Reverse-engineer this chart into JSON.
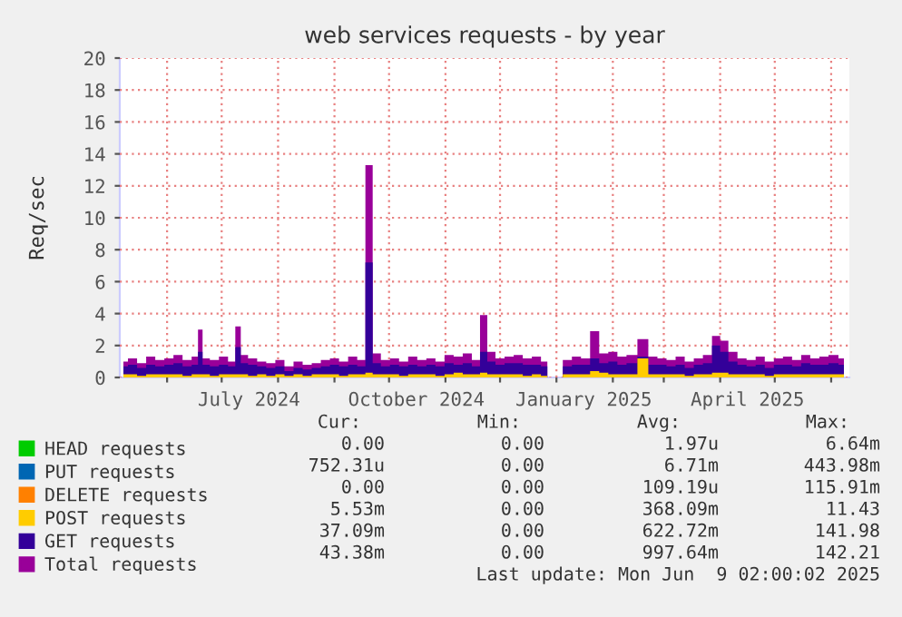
{
  "chart_data": {
    "type": "area",
    "title": "web services requests - by year",
    "ylabel": "Req/sec",
    "x": [
      "2024-05-08",
      "2024-05-13",
      "2024-05-18",
      "2024-05-23",
      "2024-05-28",
      "2024-06-02",
      "2024-06-07",
      "2024-06-12",
      "2024-06-17",
      "2024-06-19",
      "2024-06-22",
      "2024-06-27",
      "2024-07-02",
      "2024-07-07",
      "2024-07-10",
      "2024-07-13",
      "2024-07-18",
      "2024-07-23",
      "2024-07-28",
      "2024-08-02",
      "2024-08-07",
      "2024-08-12",
      "2024-08-17",
      "2024-08-22",
      "2024-08-27",
      "2024-09-01",
      "2024-09-06",
      "2024-09-11",
      "2024-09-16",
      "2024-09-20",
      "2024-09-24",
      "2024-09-29",
      "2024-10-04",
      "2024-10-09",
      "2024-10-14",
      "2024-10-19",
      "2024-10-24",
      "2024-10-29",
      "2024-11-03",
      "2024-11-08",
      "2024-11-13",
      "2024-11-18",
      "2024-11-22",
      "2024-11-26",
      "2024-12-01",
      "2024-12-06",
      "2024-12-11",
      "2024-12-16",
      "2024-12-21",
      "2024-12-26",
      "2024-12-28",
      "2025-01-02",
      "2025-01-07",
      "2025-01-12",
      "2025-01-17",
      "2025-01-22",
      "2025-01-27",
      "2025-02-01",
      "2025-02-06",
      "2025-02-11",
      "2025-02-18",
      "2025-02-23",
      "2025-02-28",
      "2025-03-05",
      "2025-03-10",
      "2025-03-15",
      "2025-03-20",
      "2025-03-25",
      "2025-03-30",
      "2025-04-03",
      "2025-04-08",
      "2025-04-13",
      "2025-04-18",
      "2025-04-23",
      "2025-04-28",
      "2025-05-03",
      "2025-05-08",
      "2025-05-13",
      "2025-05-18",
      "2025-05-23",
      "2025-05-28",
      "2025-06-02",
      "2025-06-08"
    ],
    "series": [
      {
        "name": "HEAD requests",
        "color": "#00cc00",
        "values": [
          null,
          null,
          null,
          null,
          null,
          null,
          null,
          null,
          null,
          null,
          null,
          null,
          null,
          null,
          null,
          null,
          null,
          null,
          null,
          null,
          null,
          null,
          null,
          null,
          null,
          null,
          null,
          null,
          null,
          null,
          null,
          null,
          null,
          null,
          null,
          null,
          null,
          null,
          null,
          null,
          null,
          null,
          null,
          null,
          null,
          null,
          null,
          null,
          null,
          null,
          null,
          null,
          null,
          null,
          null,
          null,
          null,
          null,
          null,
          null,
          null,
          null,
          null,
          null,
          null,
          null,
          null,
          null,
          null,
          null,
          null,
          null,
          null,
          null,
          null,
          null,
          null,
          null,
          null,
          null,
          null,
          null,
          null
        ]
      },
      {
        "name": "PUT requests",
        "color": "#0066b3",
        "values": [
          null,
          null,
          null,
          null,
          null,
          null,
          null,
          null,
          null,
          null,
          null,
          null,
          null,
          null,
          null,
          null,
          null,
          null,
          null,
          null,
          null,
          null,
          null,
          null,
          null,
          null,
          null,
          null,
          null,
          null,
          null,
          null,
          null,
          null,
          null,
          null,
          null,
          null,
          null,
          null,
          null,
          null,
          null,
          null,
          null,
          null,
          null,
          null,
          null,
          null,
          null,
          null,
          null,
          null,
          null,
          null,
          null,
          null,
          null,
          null,
          null,
          null,
          null,
          null,
          null,
          null,
          null,
          null,
          null,
          null,
          null,
          null,
          null,
          null,
          null,
          null,
          null,
          null,
          null,
          null,
          null,
          null,
          null
        ]
      },
      {
        "name": "DELETE requests",
        "color": "#ff8000",
        "values": [
          null,
          null,
          null,
          null,
          null,
          null,
          null,
          null,
          null,
          null,
          null,
          null,
          null,
          null,
          null,
          null,
          null,
          null,
          null,
          null,
          null,
          null,
          null,
          null,
          null,
          null,
          null,
          null,
          null,
          null,
          null,
          null,
          null,
          null,
          null,
          null,
          null,
          null,
          null,
          null,
          null,
          null,
          null,
          null,
          null,
          null,
          null,
          null,
          null,
          null,
          null,
          null,
          null,
          null,
          null,
          null,
          null,
          null,
          null,
          null,
          null,
          null,
          null,
          null,
          null,
          null,
          null,
          null,
          null,
          null,
          null,
          null,
          null,
          null,
          null,
          null,
          null,
          null,
          null,
          null,
          null,
          null,
          null
        ]
      },
      {
        "name": "POST requests",
        "color": "#ffcc00",
        "values": [
          0.2,
          0.2,
          0.1,
          0.2,
          0.2,
          0.2,
          0.2,
          0.1,
          0.2,
          0.2,
          0.2,
          0.1,
          0.2,
          0.2,
          0.2,
          0.2,
          0.1,
          0.2,
          0.1,
          0.2,
          0.1,
          0.2,
          0.1,
          0.2,
          0.2,
          0.2,
          0.1,
          0.2,
          0.2,
          0.3,
          0.2,
          0.2,
          0.2,
          0.1,
          0.2,
          0.2,
          0.2,
          0.1,
          0.2,
          0.3,
          0.2,
          0.2,
          0.3,
          0.2,
          0.2,
          0.2,
          0.2,
          0.1,
          0.2,
          0.1,
          0.0,
          0.0,
          0.2,
          0.2,
          0.2,
          0.4,
          0.3,
          0.2,
          0.2,
          0.2,
          1.2,
          0.2,
          0.2,
          0.2,
          0.2,
          0.1,
          0.2,
          0.2,
          0.3,
          0.3,
          0.2,
          0.2,
          0.2,
          0.2,
          0.1,
          0.2,
          0.2,
          0.2,
          0.2,
          0.2,
          0.2,
          0.2,
          0.2
        ]
      },
      {
        "name": "GET requests",
        "color": "#330099",
        "values": [
          0.7,
          0.8,
          0.6,
          0.8,
          0.7,
          0.8,
          0.9,
          0.7,
          0.8,
          1.6,
          0.8,
          0.7,
          0.8,
          0.7,
          1.9,
          0.9,
          0.8,
          0.7,
          0.6,
          0.7,
          0.4,
          0.6,
          0.5,
          0.6,
          0.7,
          0.8,
          0.7,
          0.8,
          0.7,
          7.2,
          0.9,
          0.7,
          0.8,
          0.7,
          0.8,
          0.7,
          0.8,
          0.7,
          0.9,
          0.8,
          0.9,
          0.7,
          1.6,
          1.0,
          0.8,
          0.9,
          0.9,
          0.8,
          0.8,
          0.7,
          0.0,
          0.0,
          0.7,
          0.8,
          0.8,
          1.2,
          0.9,
          1.0,
          0.8,
          0.9,
          1.3,
          0.8,
          0.8,
          0.7,
          0.8,
          0.6,
          0.8,
          0.9,
          2.0,
          1.6,
          1.0,
          0.8,
          0.7,
          0.8,
          0.6,
          0.8,
          0.8,
          0.7,
          0.9,
          0.8,
          0.8,
          0.9,
          0.8
        ]
      },
      {
        "name": "Total requests",
        "color": "#990099",
        "values": [
          1.0,
          1.2,
          0.9,
          1.3,
          1.1,
          1.2,
          1.4,
          1.1,
          1.3,
          3.0,
          1.2,
          1.1,
          1.3,
          1.0,
          3.2,
          1.4,
          1.2,
          1.0,
          0.9,
          1.1,
          0.7,
          1.0,
          0.8,
          0.9,
          1.1,
          1.2,
          1.0,
          1.3,
          1.1,
          13.3,
          1.5,
          1.1,
          1.2,
          1.0,
          1.3,
          1.1,
          1.2,
          1.0,
          1.4,
          1.3,
          1.5,
          1.1,
          3.9,
          1.6,
          1.2,
          1.3,
          1.4,
          1.2,
          1.3,
          1.0,
          0.0,
          0.0,
          1.1,
          1.3,
          1.2,
          2.9,
          1.5,
          1.6,
          1.3,
          1.4,
          2.4,
          1.3,
          1.2,
          1.1,
          1.3,
          1.0,
          1.2,
          1.4,
          2.6,
          2.3,
          1.6,
          1.2,
          1.1,
          1.3,
          1.0,
          1.2,
          1.3,
          1.1,
          1.4,
          1.2,
          1.3,
          1.4,
          1.2
        ]
      }
    ],
    "xlim": [
      "2024-05-06",
      "2025-06-11"
    ],
    "xticks": [
      {
        "value": "2024-06-01",
        "label": null
      },
      {
        "value": "2024-07-01",
        "label": null
      },
      {
        "value": "2024-07-16",
        "label": "July 2024"
      },
      {
        "value": "2024-08-01",
        "label": null
      },
      {
        "value": "2024-09-01",
        "label": null
      },
      {
        "value": "2024-10-01",
        "label": null
      },
      {
        "value": "2024-10-16",
        "label": "October 2024"
      },
      {
        "value": "2024-11-01",
        "label": null
      },
      {
        "value": "2024-12-01",
        "label": null
      },
      {
        "value": "2025-01-01",
        "label": null
      },
      {
        "value": "2025-01-16",
        "label": "January 2025"
      },
      {
        "value": "2025-02-01",
        "label": null
      },
      {
        "value": "2025-03-01",
        "label": null
      },
      {
        "value": "2025-04-01",
        "label": null
      },
      {
        "value": "2025-04-16",
        "label": "April 2025"
      },
      {
        "value": "2025-05-01",
        "label": null
      },
      {
        "value": "2025-06-01",
        "label": null
      }
    ],
    "ylim": [
      0,
      20
    ],
    "yticks": [
      0,
      2,
      4,
      6,
      8,
      10,
      12,
      14,
      16,
      18,
      20
    ],
    "grid": true,
    "legend": "bottom",
    "annotations": [
      "Cur:",
      "Min:",
      "Avg:",
      "Max:",
      "0.00",
      "0.00",
      "1.97u",
      "6.64m",
      "752.31u",
      "0.00",
      "6.71m",
      "443.98m",
      "0.00",
      "0.00",
      "109.19u",
      "115.91m",
      "5.53m",
      "0.00",
      "368.09m",
      "11.43",
      "37.09m",
      "0.00",
      "622.72m",
      "141.98",
      "43.38m",
      "0.00",
      "997.64m",
      "142.21",
      "Last update: Mon Jun  9 02:00:02 2025"
    ]
  }
}
